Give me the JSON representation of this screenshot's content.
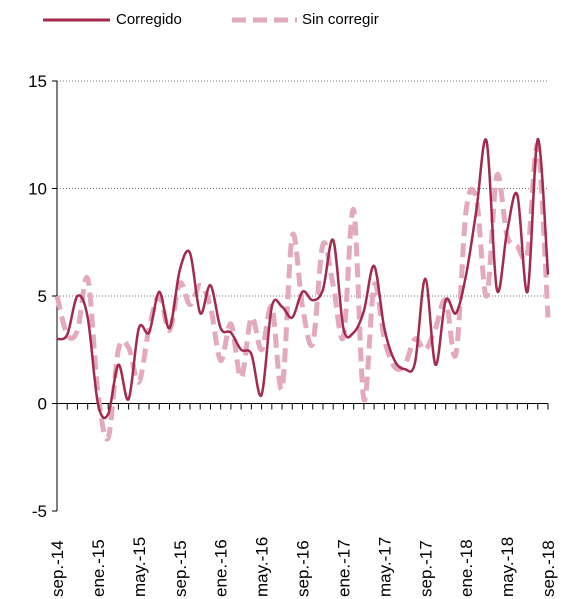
{
  "chart_data": {
    "type": "line",
    "categories": [
      "sep.-14",
      null,
      null,
      null,
      "ene.-15",
      null,
      null,
      null,
      "may.-15",
      null,
      null,
      null,
      "sep.-15",
      null,
      null,
      null,
      "ene.-16",
      null,
      null,
      null,
      "may.-16",
      null,
      null,
      null,
      "sep.-16",
      null,
      null,
      null,
      "ene.-17",
      null,
      null,
      null,
      "may.-17",
      null,
      null,
      null,
      "sep.-17",
      null,
      null,
      null,
      "ene.-18",
      null,
      null,
      null,
      "may.-18",
      null,
      null,
      null,
      "sep.-18"
    ],
    "series": [
      {
        "name": "Corregido",
        "color": "#a3294d",
        "dashed": false,
        "values": [
          3.0,
          3.2,
          5.0,
          4.0,
          0.0,
          -0.5,
          1.8,
          0.2,
          3.5,
          3.3,
          5.2,
          3.5,
          6.2,
          7.0,
          4.2,
          5.5,
          3.5,
          3.3,
          2.5,
          2.3,
          0.4,
          4.5,
          4.5,
          4.0,
          5.2,
          4.8,
          5.3,
          7.6,
          3.5,
          3.3,
          4.3,
          6.4,
          3.5,
          2.0,
          1.6,
          1.9,
          5.8,
          1.8,
          4.8,
          4.2,
          6.0,
          9.0,
          12.2,
          5.3,
          8.0,
          9.7,
          5.2,
          12.3,
          6.0
        ]
      },
      {
        "name": "Sin corregir",
        "color": "#e3a9bd",
        "dashed": true,
        "values": [
          5.0,
          3.2,
          3.4,
          5.8,
          0.5,
          -1.6,
          2.5,
          2.6,
          1.0,
          3.5,
          5.0,
          3.4,
          5.6,
          4.6,
          5.5,
          4.5,
          2.0,
          3.7,
          1.2,
          4.0,
          2.5,
          4.5,
          0.7,
          7.8,
          4.5,
          2.8,
          7.4,
          5.5,
          3.1,
          9.0,
          0.2,
          5.5,
          3.0,
          1.7,
          1.8,
          3.0,
          2.5,
          3.5,
          4.8,
          2.3,
          9.0,
          9.5,
          5.0,
          10.6,
          7.8,
          7.3,
          7.0,
          12.0,
          4.0
        ]
      }
    ],
    "ylim": [
      -5,
      15
    ],
    "yticks": [
      -5,
      0,
      5,
      10,
      15
    ],
    "grid": true
  }
}
